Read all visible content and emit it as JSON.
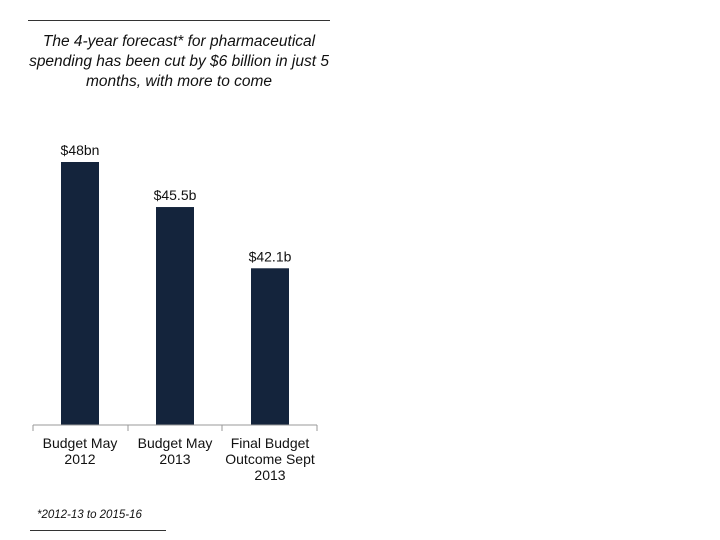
{
  "chart_data": {
    "type": "bar",
    "title": "The 4-year forecast* for pharmaceutical spending has been cut by $6 billion in just 5 months, with more to come",
    "categories": [
      "Budget May 2012",
      "Budget May 2013",
      "Final Budget Outcome Sept 2013"
    ],
    "category_lines": [
      [
        "Budget May",
        "2012"
      ],
      [
        "Budget May",
        "2013"
      ],
      [
        "Final Budget",
        "Outcome Sept",
        "2013"
      ]
    ],
    "values": [
      48,
      45.5,
      42.1
    ],
    "data_labels": [
      "$48bn",
      "$45.5b",
      "$42.1b"
    ],
    "ylim": [
      33.4,
      48
    ],
    "grid": false,
    "bar_color": "#14243c",
    "footnote": "*2012-13 to 2015-16"
  }
}
